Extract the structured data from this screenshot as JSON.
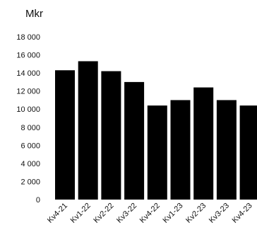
{
  "chart_data": {
    "type": "bar",
    "unit_label": "Mkr",
    "categories": [
      "Kv4-21",
      "Kv1-22",
      "Kv2-22",
      "Kv3-22",
      "Kv4-22",
      "Kv1-23",
      "Kv2-23",
      "Kv3-23",
      "Kv4-23"
    ],
    "values": [
      14300,
      15300,
      14200,
      13000,
      10400,
      11000,
      12400,
      11000,
      10400
    ],
    "ylim": [
      0,
      18000
    ],
    "yticks": [
      0,
      2000,
      4000,
      6000,
      8000,
      10000,
      12000,
      14000,
      16000,
      18000
    ],
    "ytick_labels": [
      "0",
      "2 000",
      "4 000",
      "6 000",
      "8 000",
      "10 000",
      "12 000",
      "14 000",
      "16 000",
      "18 000"
    ],
    "grid": false,
    "bar_color": "#000000"
  }
}
